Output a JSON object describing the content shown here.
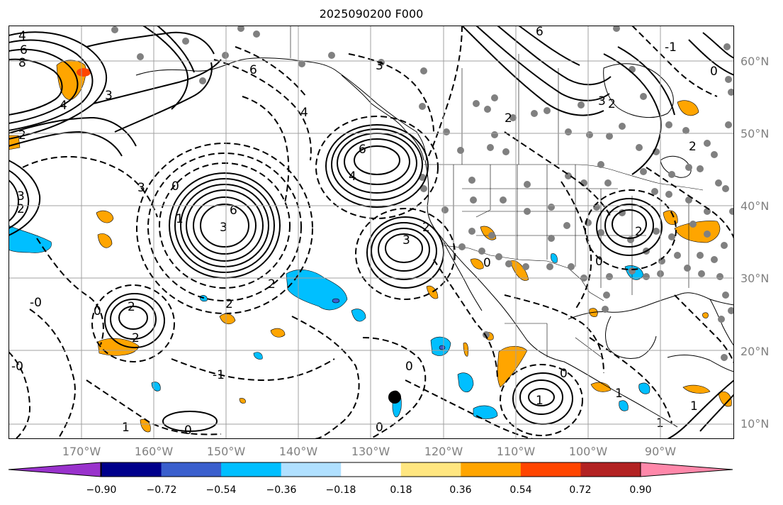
{
  "title": "2025090200 F000",
  "lat_labels": [
    "60°N",
    "50°N",
    "40°N",
    "30°N",
    "20°N",
    "10°N"
  ],
  "lon_labels": [
    "170°W",
    "160°W",
    "150°W",
    "140°W",
    "130°W",
    "120°W",
    "110°W",
    "100°W",
    "90°W"
  ],
  "colorbar": {
    "ticks": [
      "−0.90",
      "−0.72",
      "−0.54",
      "−0.36",
      "−0.18",
      "0.18",
      "0.36",
      "0.54",
      "0.72",
      "0.90"
    ],
    "colors": [
      "#9932cc",
      "#00008b",
      "#3a5fcd",
      "#00bfff",
      "#b0e0ff",
      "#ffffff",
      "#ffe680",
      "#ffa500",
      "#ff4500",
      "#b22222",
      "#ff88aa"
    ]
  },
  "contour_labels": {
    "nw_4": "4",
    "nw_6": "6",
    "nw_8": "8",
    "nw_4b": "4",
    "nw_3": "3",
    "nw_2": "2",
    "gulf_6": "6",
    "gulf_4": "4",
    "west_3": "3",
    "low_0": "0",
    "center_6": "6",
    "center_1": "1",
    "center_3": "3",
    "high_6": "6",
    "high_4": "4",
    "calif_3": "3",
    "calif_2": "2",
    "hawaii_2": "2",
    "hawaii_0": "0",
    "hawaii_2b": "2",
    "left_0": "-0",
    "mid_2": "2",
    "mid_2b": "2",
    "mid_1": "-1",
    "south_0": "0",
    "bottom_0": "0",
    "bottom_1": "1",
    "mex_1": "1",
    "mex_0": "0",
    "gulf_of_mex_2": "2",
    "east_0": "0",
    "east_2": "2",
    "east_3": "3",
    "ne_2": "2",
    "ne_0": "0",
    "ne_1": "-1",
    "mid_0": "0",
    "can_3": "3",
    "can_2": "2",
    "sw_0": "-0",
    "sw_1": "1",
    "carib_1": "1",
    "carib_0": "0",
    "canada_6": "6",
    "east_1": "1",
    "left_2": "2",
    "left_3": "3"
  }
}
